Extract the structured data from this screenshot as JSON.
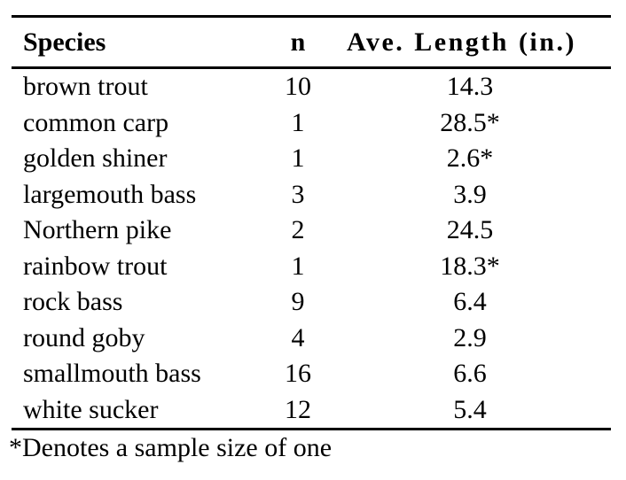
{
  "colors": {
    "background": "#ffffff",
    "text": "#000000",
    "rule": "#000000"
  },
  "chart_data": {
    "type": "table",
    "title": "",
    "columns": [
      "Species",
      "n",
      "Ave. Length (in.)"
    ],
    "rows": [
      [
        "brown trout",
        "10",
        "14.3"
      ],
      [
        "common carp",
        "1",
        "28.5*"
      ],
      [
        "golden shiner",
        "1",
        "2.6*"
      ],
      [
        "largemouth bass",
        "3",
        "3.9"
      ],
      [
        "Northern pike",
        "2",
        "24.5"
      ],
      [
        "rainbow trout",
        "1",
        "18.3*"
      ],
      [
        "rock bass",
        "9",
        "6.4"
      ],
      [
        "round goby",
        "4",
        "2.9"
      ],
      [
        "smallmouth bass",
        "16",
        "6.6"
      ],
      [
        "white sucker",
        "12",
        "5.4"
      ]
    ],
    "footnote": "*Denotes a sample size of one",
    "layout": {
      "grid": "horizontal rules only: above header, below header, below last row",
      "column_alignment": [
        "left",
        "center",
        "center"
      ]
    }
  }
}
